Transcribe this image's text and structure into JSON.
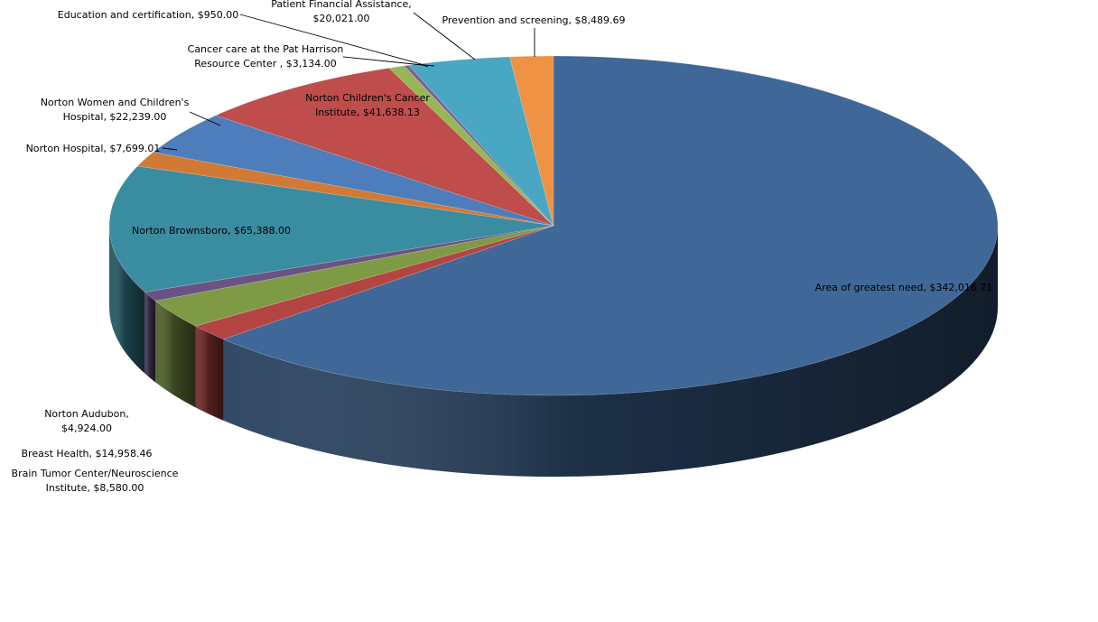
{
  "chart_data": {
    "type": "pie",
    "title": "",
    "variant": "3d",
    "legend": "none",
    "slices": [
      {
        "name": "Area of greatest need",
        "value": 342016.71,
        "label": "Area of greatest need,  $342,016.71",
        "color": "#3F6797"
      },
      {
        "name": "Brain Tumor Center/Neuroscience Institute",
        "value": 8580.0,
        "label_lines": [
          "Brain Tumor Center/Neuroscience",
          "Institute,  $8,580.00"
        ],
        "color": "#B44442"
      },
      {
        "name": "Breast Health",
        "value": 14958.46,
        "label": "Breast Health,  $14,958.46",
        "color": "#7F9A45"
      },
      {
        "name": "Norton Audubon",
        "value": 4924.0,
        "label_lines": [
          "Norton Audubon,",
          "$4,924.00"
        ],
        "color": "#6A5384"
      },
      {
        "name": "Norton Brownsboro",
        "value": 65388.0,
        "label": "Norton Brownsboro,  $65,388.00",
        "color": "#3A8CA0"
      },
      {
        "name": "Norton Hospital",
        "value": 7699.01,
        "label": "Norton Hospital,  $7,699.01",
        "color": "#D07A35"
      },
      {
        "name": "Norton Women and Children's Hospital",
        "value": 22239.0,
        "label_lines": [
          "Norton Women and Children's",
          "Hospital,  $22,239.00"
        ],
        "color": "#4D7DBB"
      },
      {
        "name": "Norton Children's Cancer Institute",
        "value": 41638.13,
        "label_lines": [
          "Norton Children's Cancer",
          "Institute,  $41,638.13"
        ],
        "color": "#BF4D4B"
      },
      {
        "name": "Cancer care at the Pat Harrison Resource Center",
        "value": 3134.0,
        "label_lines": [
          "Cancer care at the Pat Harrison",
          "Resource Center ,  $3,134.00"
        ],
        "color": "#97B655"
      },
      {
        "name": "Education and certification",
        "value": 950.0,
        "label": "Education and certification,  $950.00",
        "color": "#7B619A"
      },
      {
        "name": "Patient Financial Assistance",
        "value": 20021.0,
        "label_lines": [
          "Patient Financial Assistance,",
          "$20,021.00"
        ],
        "color": "#4AA7C3"
      },
      {
        "name": "Prevention and screening",
        "value": 8489.69,
        "label": "Prevention and screening,  $8,489.69",
        "color": "#EF9244"
      }
    ]
  }
}
